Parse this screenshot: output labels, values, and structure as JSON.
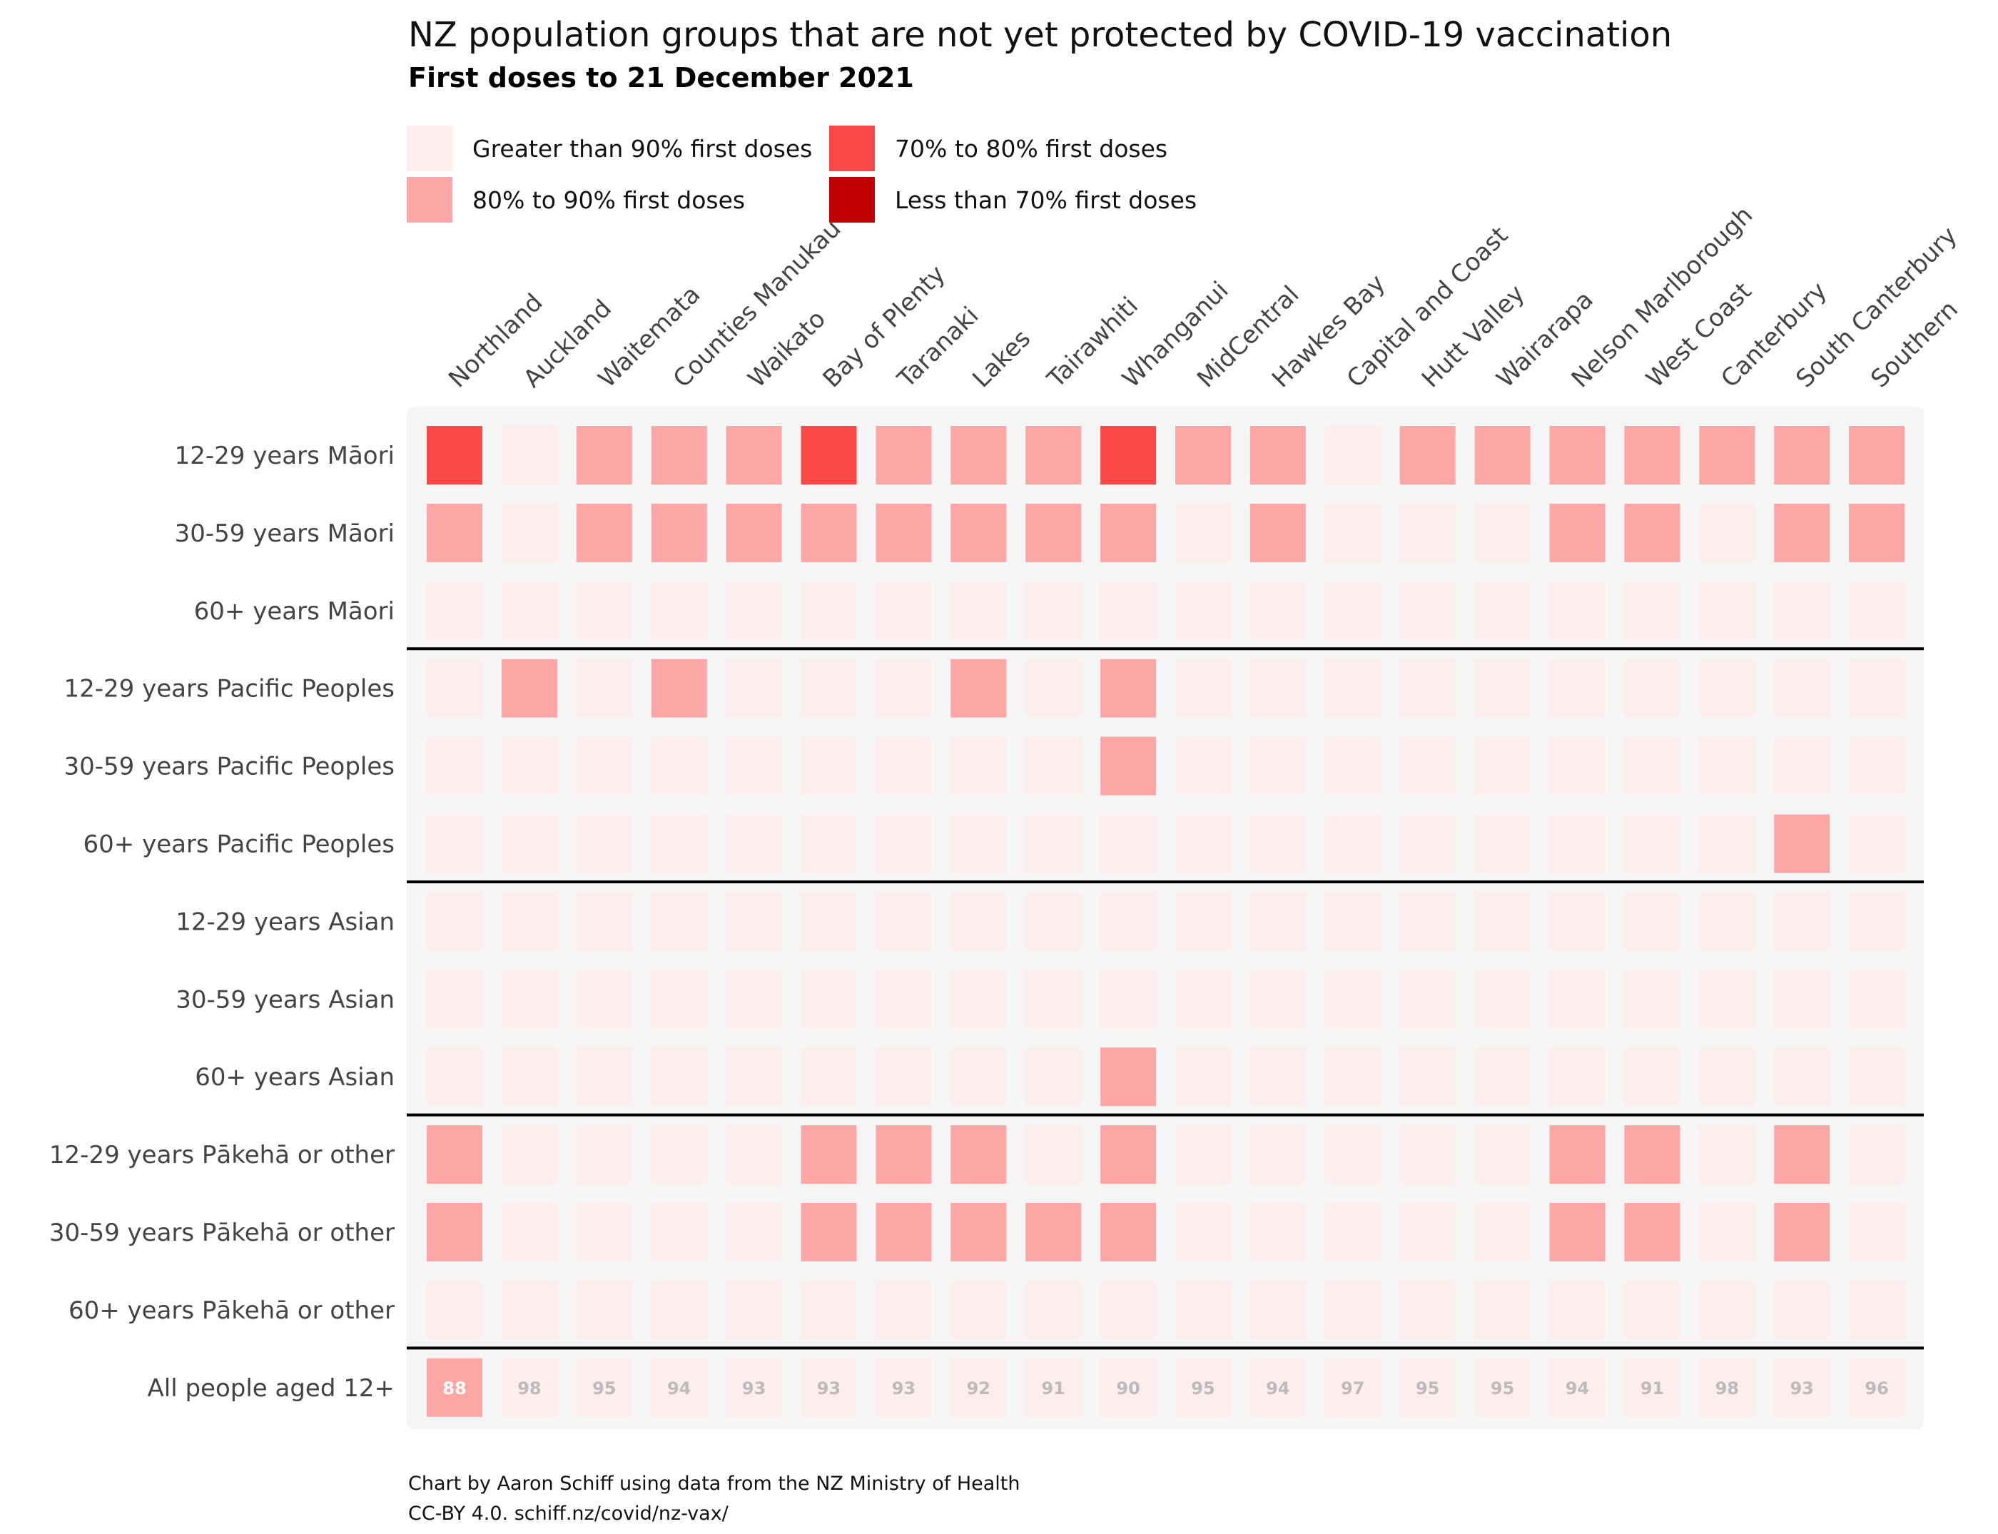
{
  "title": "NZ population groups that are not yet protected by COVID-19 vaccination",
  "subtitle": "First doses to 21 December 2021",
  "caption": [
    "Chart by Aaron Schiff using data from the NZ Ministry of Health",
    "CC-BY 4.0. schiff.nz/covid/nz-vax/"
  ],
  "colors": {
    "gt90": "#fdeded",
    "80to90": "#fca6a6",
    "70to80": "#fd4848",
    "lt70": "#c00000",
    "panel": "#f5f5f5",
    "cell_text_light": "#bbbbbb",
    "cell_text_dark": "#ffffff"
  },
  "legend": [
    {
      "key": "gt90",
      "label": "Greater than 90% first doses"
    },
    {
      "key": "70to80",
      "label": "70% to 80% first doses"
    },
    {
      "key": "80to90",
      "label": "80% to 90% first doses"
    },
    {
      "key": "lt70",
      "label": "Less than 70% first doses"
    }
  ],
  "chart_data": {
    "type": "heatmap",
    "title": "NZ population groups that are not yet protected by COVID-19 vaccination",
    "subtitle": "First doses to 21 December 2021",
    "columns": [
      "Northland",
      "Auckland",
      "Waitemata",
      "Counties Manukau",
      "Waikato",
      "Bay of Plenty",
      "Taranaki",
      "Lakes",
      "Tairawhiti",
      "Whanganui",
      "MidCentral",
      "Hawkes Bay",
      "Capital and Coast",
      "Hutt Valley",
      "Wairarapa",
      "Nelson Marlborough",
      "West Coast",
      "Canterbury",
      "South Canterbury",
      "Southern"
    ],
    "rows": [
      "12-29 years Māori",
      "30-59 years Māori",
      "60+ years Māori",
      "12-29 years Pacific Peoples",
      "30-59 years Pacific Peoples",
      "60+ years Pacific Peoples",
      "12-29 years Asian",
      "30-59 years Asian",
      "60+ years Asian",
      "12-29 years Pākehā or other",
      "30-59 years Pākehā or other",
      "60+ years Pākehā or other",
      "All people aged 12+"
    ],
    "group_breaks_after_row": [
      2,
      5,
      8,
      11
    ],
    "categories": [
      "gt90",
      "80to90",
      "70to80",
      "lt70"
    ],
    "cells": [
      [
        "70to80",
        "gt90",
        "80to90",
        "80to90",
        "80to90",
        "70to80",
        "80to90",
        "80to90",
        "80to90",
        "70to80",
        "80to90",
        "80to90",
        "gt90",
        "80to90",
        "80to90",
        "80to90",
        "80to90",
        "80to90",
        "80to90",
        "80to90"
      ],
      [
        "80to90",
        "gt90",
        "80to90",
        "80to90",
        "80to90",
        "80to90",
        "80to90",
        "80to90",
        "80to90",
        "80to90",
        "gt90",
        "80to90",
        "gt90",
        "gt90",
        "gt90",
        "80to90",
        "80to90",
        "gt90",
        "80to90",
        "80to90"
      ],
      [
        "gt90",
        "gt90",
        "gt90",
        "gt90",
        "gt90",
        "gt90",
        "gt90",
        "gt90",
        "gt90",
        "gt90",
        "gt90",
        "gt90",
        "gt90",
        "gt90",
        "gt90",
        "gt90",
        "gt90",
        "gt90",
        "gt90",
        "gt90"
      ],
      [
        "gt90",
        "80to90",
        "gt90",
        "80to90",
        "gt90",
        "gt90",
        "gt90",
        "80to90",
        "gt90",
        "80to90",
        "gt90",
        "gt90",
        "gt90",
        "gt90",
        "gt90",
        "gt90",
        "gt90",
        "gt90",
        "gt90",
        "gt90"
      ],
      [
        "gt90",
        "gt90",
        "gt90",
        "gt90",
        "gt90",
        "gt90",
        "gt90",
        "gt90",
        "gt90",
        "80to90",
        "gt90",
        "gt90",
        "gt90",
        "gt90",
        "gt90",
        "gt90",
        "gt90",
        "gt90",
        "gt90",
        "gt90"
      ],
      [
        "gt90",
        "gt90",
        "gt90",
        "gt90",
        "gt90",
        "gt90",
        "gt90",
        "gt90",
        "gt90",
        "gt90",
        "gt90",
        "gt90",
        "gt90",
        "gt90",
        "gt90",
        "gt90",
        "gt90",
        "gt90",
        "80to90",
        "gt90"
      ],
      [
        "gt90",
        "gt90",
        "gt90",
        "gt90",
        "gt90",
        "gt90",
        "gt90",
        "gt90",
        "gt90",
        "gt90",
        "gt90",
        "gt90",
        "gt90",
        "gt90",
        "gt90",
        "gt90",
        "gt90",
        "gt90",
        "gt90",
        "gt90"
      ],
      [
        "gt90",
        "gt90",
        "gt90",
        "gt90",
        "gt90",
        "gt90",
        "gt90",
        "gt90",
        "gt90",
        "gt90",
        "gt90",
        "gt90",
        "gt90",
        "gt90",
        "gt90",
        "gt90",
        "gt90",
        "gt90",
        "gt90",
        "gt90"
      ],
      [
        "gt90",
        "gt90",
        "gt90",
        "gt90",
        "gt90",
        "gt90",
        "gt90",
        "gt90",
        "gt90",
        "80to90",
        "gt90",
        "gt90",
        "gt90",
        "gt90",
        "gt90",
        "gt90",
        "gt90",
        "gt90",
        "gt90",
        "gt90"
      ],
      [
        "80to90",
        "gt90",
        "gt90",
        "gt90",
        "gt90",
        "80to90",
        "80to90",
        "80to90",
        "gt90",
        "80to90",
        "gt90",
        "gt90",
        "gt90",
        "gt90",
        "gt90",
        "80to90",
        "80to90",
        "gt90",
        "80to90",
        "gt90"
      ],
      [
        "80to90",
        "gt90",
        "gt90",
        "gt90",
        "gt90",
        "80to90",
        "80to90",
        "80to90",
        "80to90",
        "80to90",
        "gt90",
        "gt90",
        "gt90",
        "gt90",
        "gt90",
        "80to90",
        "80to90",
        "gt90",
        "80to90",
        "gt90"
      ],
      [
        "gt90",
        "gt90",
        "gt90",
        "gt90",
        "gt90",
        "gt90",
        "gt90",
        "gt90",
        "gt90",
        "gt90",
        "gt90",
        "gt90",
        "gt90",
        "gt90",
        "gt90",
        "gt90",
        "gt90",
        "gt90",
        "gt90",
        "gt90"
      ],
      [
        "80to90",
        "gt90",
        "gt90",
        "gt90",
        "gt90",
        "gt90",
        "gt90",
        "gt90",
        "gt90",
        "gt90",
        "gt90",
        "gt90",
        "gt90",
        "gt90",
        "gt90",
        "gt90",
        "gt90",
        "gt90",
        "gt90",
        "gt90"
      ]
    ],
    "last_row_values": [
      88,
      98,
      95,
      94,
      93,
      93,
      93,
      92,
      91,
      90,
      95,
      94,
      97,
      95,
      95,
      94,
      91,
      98,
      93,
      96
    ]
  }
}
